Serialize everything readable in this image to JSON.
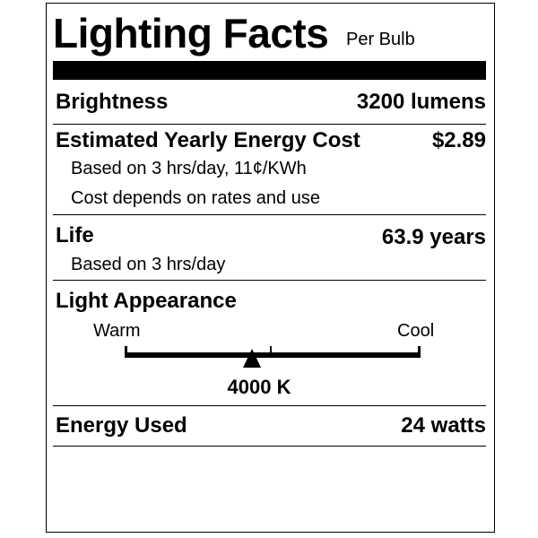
{
  "header": {
    "title": "Lighting Facts",
    "subtitle": "Per Bulb"
  },
  "brightness": {
    "label": "Brightness",
    "value": "3200 lumens"
  },
  "energy_cost": {
    "label": "Estimated Yearly Energy Cost",
    "value": "$2.89",
    "note1": "Based on 3 hrs/day, 11¢/KWh",
    "note2": "Cost depends on rates and use"
  },
  "life": {
    "label": "Life",
    "value": "63.9 years",
    "note": "Based on 3 hrs/day"
  },
  "light_appearance": {
    "label": "Light Appearance",
    "warm_label": "Warm",
    "cool_label": "Cool",
    "value": "4000 K",
    "marker_fraction": 0.43
  },
  "energy_used": {
    "label": "Energy Used",
    "value": "24 watts"
  }
}
